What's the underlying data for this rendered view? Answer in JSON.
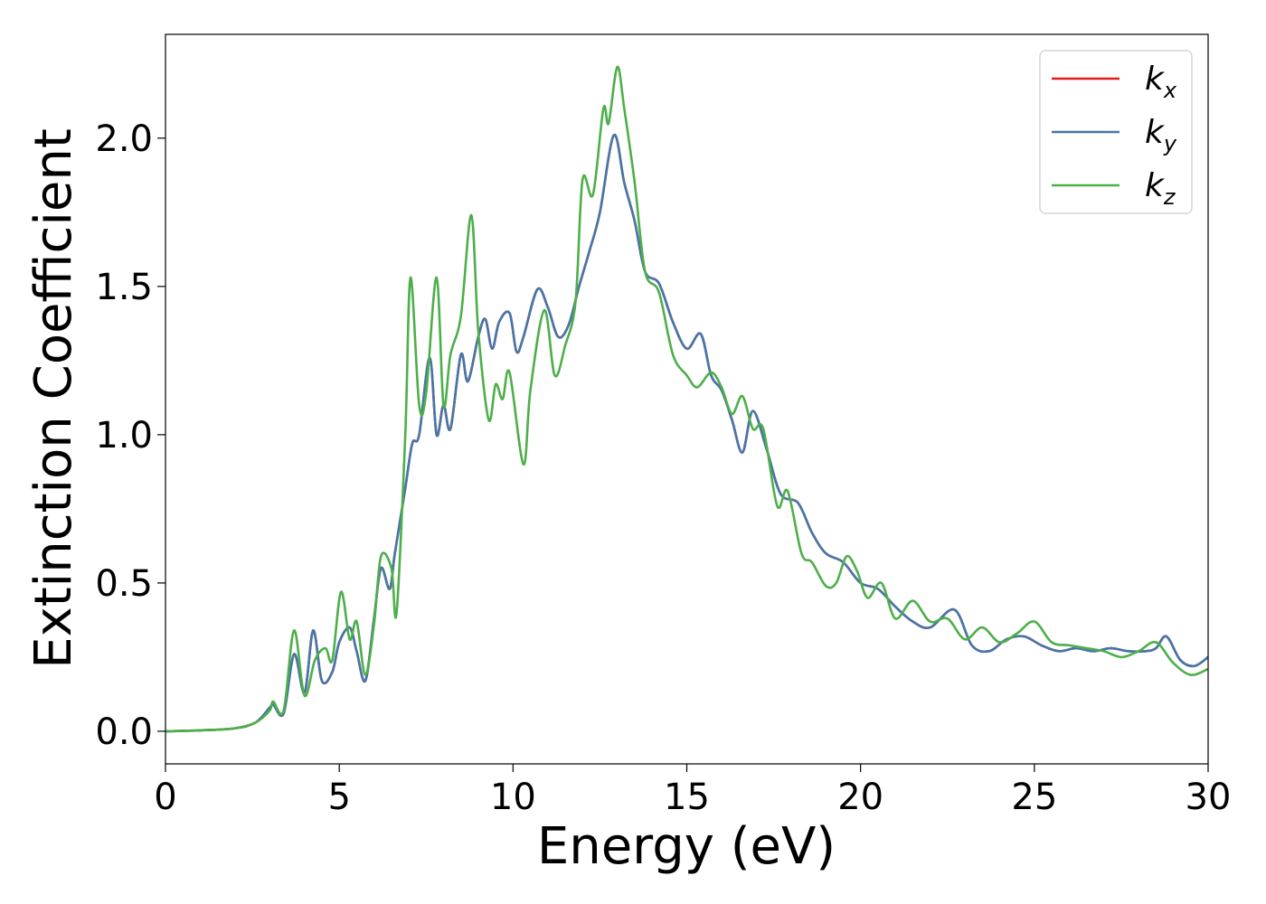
{
  "chart_data": {
    "type": "line",
    "xlabel": "Energy (eV)",
    "ylabel": "Extinction Coefficient",
    "xlim": [
      0,
      30
    ],
    "ylim": [
      -0.11,
      2.35
    ],
    "xticks": [
      "0",
      "5",
      "10",
      "15",
      "20",
      "25",
      "30"
    ],
    "yticks": [
      "0.0",
      "0.5",
      "1.0",
      "1.5",
      "2.0"
    ],
    "grid": false,
    "legend_position": "top-right",
    "series": [
      {
        "name": "k",
        "sub": "x",
        "color": "#e41a1c",
        "x": [
          0,
          1,
          2,
          2.6,
          3.0,
          3.1,
          3.4,
          3.7,
          4.0,
          4.25,
          4.5,
          4.8,
          5.0,
          5.3,
          5.5,
          5.75,
          6.0,
          6.2,
          6.45,
          6.6,
          6.9,
          7.1,
          7.3,
          7.6,
          7.8,
          8.0,
          8.2,
          8.5,
          8.7,
          9.0,
          9.2,
          9.4,
          9.6,
          9.9,
          10.1,
          10.3,
          10.7,
          11.0,
          11.3,
          11.6,
          11.9,
          12.2,
          12.5,
          12.9,
          13.2,
          13.5,
          13.8,
          14.2,
          14.6,
          15.0,
          15.4,
          15.7,
          16.0,
          16.3,
          16.6,
          16.9,
          17.3,
          17.7,
          18.2,
          18.6,
          19.0,
          19.5,
          20.0,
          20.5,
          21.0,
          21.5,
          22.0,
          22.7,
          23.2,
          23.7,
          24.2,
          24.7,
          25.2,
          25.7,
          26.2,
          26.7,
          27.2,
          27.7,
          28.2,
          28.5,
          28.8,
          29.2,
          29.6,
          30.0
        ],
        "values": [
          0.0,
          0.003,
          0.01,
          0.03,
          0.08,
          0.09,
          0.06,
          0.26,
          0.13,
          0.34,
          0.17,
          0.2,
          0.3,
          0.35,
          0.27,
          0.17,
          0.38,
          0.55,
          0.48,
          0.6,
          0.82,
          0.97,
          1.0,
          1.26,
          1.0,
          1.1,
          1.02,
          1.27,
          1.18,
          1.33,
          1.39,
          1.29,
          1.38,
          1.41,
          1.28,
          1.33,
          1.49,
          1.43,
          1.33,
          1.37,
          1.5,
          1.62,
          1.75,
          2.01,
          1.85,
          1.72,
          1.55,
          1.51,
          1.38,
          1.29,
          1.34,
          1.2,
          1.15,
          1.05,
          0.94,
          1.08,
          0.95,
          0.8,
          0.77,
          0.67,
          0.6,
          0.57,
          0.5,
          0.48,
          0.42,
          0.37,
          0.35,
          0.41,
          0.29,
          0.27,
          0.31,
          0.32,
          0.29,
          0.27,
          0.28,
          0.27,
          0.28,
          0.27,
          0.27,
          0.28,
          0.32,
          0.24,
          0.22,
          0.25
        ]
      },
      {
        "name": "k",
        "sub": "y",
        "color": "#4477aa",
        "x": [
          0,
          1,
          2,
          2.6,
          3.0,
          3.1,
          3.4,
          3.7,
          4.0,
          4.25,
          4.5,
          4.8,
          5.0,
          5.3,
          5.5,
          5.75,
          6.0,
          6.2,
          6.45,
          6.6,
          6.9,
          7.1,
          7.3,
          7.6,
          7.8,
          8.0,
          8.2,
          8.5,
          8.7,
          9.0,
          9.2,
          9.4,
          9.6,
          9.9,
          10.1,
          10.3,
          10.7,
          11.0,
          11.3,
          11.6,
          11.9,
          12.2,
          12.5,
          12.9,
          13.2,
          13.5,
          13.8,
          14.2,
          14.6,
          15.0,
          15.4,
          15.7,
          16.0,
          16.3,
          16.6,
          16.9,
          17.3,
          17.7,
          18.2,
          18.6,
          19.0,
          19.5,
          20.0,
          20.5,
          21.0,
          21.5,
          22.0,
          22.7,
          23.2,
          23.7,
          24.2,
          24.7,
          25.2,
          25.7,
          26.2,
          26.7,
          27.2,
          27.7,
          28.2,
          28.5,
          28.8,
          29.2,
          29.6,
          30.0
        ],
        "values": [
          0.0,
          0.003,
          0.01,
          0.03,
          0.08,
          0.09,
          0.06,
          0.26,
          0.13,
          0.34,
          0.17,
          0.2,
          0.3,
          0.35,
          0.27,
          0.17,
          0.38,
          0.55,
          0.48,
          0.6,
          0.82,
          0.97,
          1.0,
          1.26,
          1.0,
          1.1,
          1.02,
          1.27,
          1.18,
          1.33,
          1.39,
          1.29,
          1.38,
          1.41,
          1.28,
          1.33,
          1.49,
          1.43,
          1.33,
          1.37,
          1.5,
          1.62,
          1.75,
          2.01,
          1.85,
          1.72,
          1.55,
          1.51,
          1.38,
          1.29,
          1.34,
          1.2,
          1.15,
          1.05,
          0.94,
          1.08,
          0.95,
          0.8,
          0.77,
          0.67,
          0.6,
          0.57,
          0.5,
          0.48,
          0.42,
          0.37,
          0.35,
          0.41,
          0.29,
          0.27,
          0.31,
          0.32,
          0.29,
          0.27,
          0.28,
          0.27,
          0.28,
          0.27,
          0.27,
          0.28,
          0.32,
          0.24,
          0.22,
          0.25
        ]
      },
      {
        "name": "k",
        "sub": "z",
        "color": "#4daf4a",
        "x": [
          0,
          1,
          2,
          2.6,
          3.0,
          3.1,
          3.4,
          3.7,
          4.0,
          4.3,
          4.6,
          4.8,
          5.05,
          5.3,
          5.5,
          5.75,
          6.0,
          6.2,
          6.5,
          6.65,
          6.9,
          7.05,
          7.3,
          7.5,
          7.8,
          8.0,
          8.2,
          8.5,
          8.8,
          9.0,
          9.3,
          9.5,
          9.7,
          9.9,
          10.3,
          10.5,
          10.9,
          11.2,
          11.5,
          11.8,
          12.0,
          12.3,
          12.6,
          12.75,
          13.0,
          13.2,
          13.5,
          13.8,
          14.2,
          14.6,
          15.0,
          15.3,
          15.7,
          16.0,
          16.3,
          16.6,
          16.9,
          17.2,
          17.6,
          17.9,
          18.3,
          18.6,
          19.0,
          19.3,
          19.6,
          19.9,
          20.2,
          20.6,
          21.0,
          21.5,
          22.0,
          22.5,
          23.0,
          23.5,
          24.0,
          24.5,
          25.0,
          25.5,
          26.0,
          26.5,
          27.0,
          27.5,
          28.0,
          28.5,
          29.0,
          29.5,
          30.0
        ],
        "values": [
          0.0,
          0.003,
          0.01,
          0.03,
          0.07,
          0.1,
          0.07,
          0.34,
          0.12,
          0.24,
          0.28,
          0.24,
          0.47,
          0.31,
          0.37,
          0.19,
          0.36,
          0.59,
          0.55,
          0.4,
          1.0,
          1.53,
          1.1,
          1.14,
          1.53,
          1.1,
          1.27,
          1.4,
          1.74,
          1.35,
          1.05,
          1.17,
          1.12,
          1.21,
          0.9,
          1.15,
          1.42,
          1.2,
          1.3,
          1.45,
          1.86,
          1.81,
          2.1,
          2.05,
          2.24,
          2.1,
          1.85,
          1.55,
          1.48,
          1.27,
          1.2,
          1.16,
          1.21,
          1.16,
          1.07,
          1.13,
          1.02,
          1.02,
          0.76,
          0.81,
          0.6,
          0.57,
          0.49,
          0.5,
          0.59,
          0.54,
          0.45,
          0.5,
          0.38,
          0.44,
          0.37,
          0.38,
          0.31,
          0.35,
          0.3,
          0.33,
          0.37,
          0.3,
          0.29,
          0.28,
          0.27,
          0.25,
          0.27,
          0.3,
          0.23,
          0.19,
          0.21
        ]
      }
    ]
  }
}
